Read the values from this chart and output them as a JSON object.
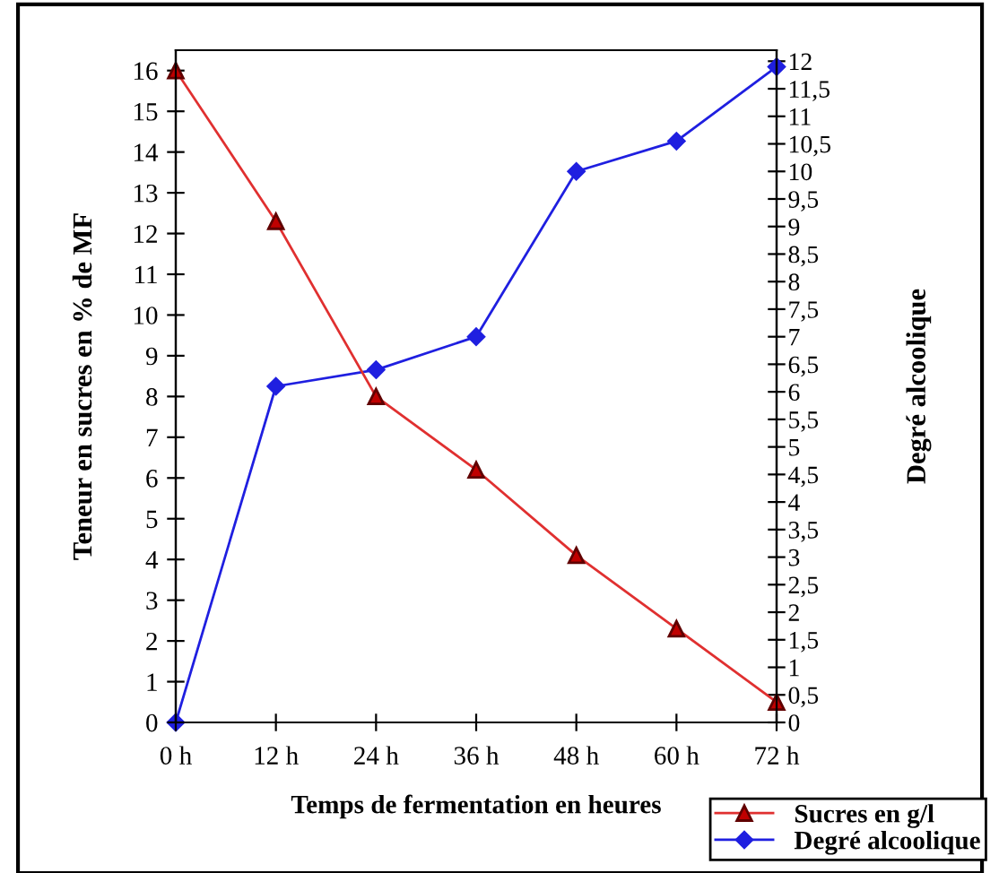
{
  "chart_data": {
    "type": "line",
    "xlabel": "Temps de fermentation en heures",
    "ylabel": "Teneur en sucres en % de MF",
    "y2label": "Degré alcoolique",
    "categories": [
      "0 h",
      "12 h",
      "24 h",
      "36 h",
      "48 h",
      "60 h",
      "72 h"
    ],
    "series": [
      {
        "name": "Sucres en g/l",
        "color": "#e03030",
        "values": [
          16,
          12.3,
          8,
          6.2,
          4.1,
          2.3,
          0.5
        ],
        "marker": "triangle"
      },
      {
        "name": "Degré alcoolique",
        "color": "#1f1fe0",
        "values": [
          0,
          6.1,
          6.4,
          7.0,
          10,
          10.55,
          11.9
        ],
        "marker": "diamond",
        "axis": "y2"
      }
    ],
    "ylim": [
      0,
      16.5
    ],
    "yticks": [
      0,
      1,
      2,
      3,
      4,
      5,
      6,
      7,
      8,
      9,
      10,
      11,
      12,
      13,
      14,
      15,
      16
    ],
    "y2lim": [
      0,
      12.2
    ],
    "y2ticks": [
      0,
      {
        "value": 0.5,
        "label": "0,5"
      },
      1,
      {
        "value": 1.5,
        "label": "1,5"
      },
      2,
      {
        "value": 2.5,
        "label": "2,5"
      },
      3,
      {
        "value": 3.5,
        "label": "3,5"
      },
      4,
      {
        "value": 4.5,
        "label": "4,5"
      },
      5,
      {
        "value": 5.5,
        "label": "5,5"
      },
      6,
      {
        "value": 6.5,
        "label": "6,5"
      },
      7,
      {
        "value": 7.5,
        "label": "7,5"
      },
      8,
      {
        "value": 8.5,
        "label": "8,5"
      },
      9,
      {
        "value": 9.5,
        "label": "9,5"
      },
      10,
      {
        "value": 10.5,
        "label": "10,5"
      },
      11,
      {
        "value": 11.5,
        "label": "11,5"
      },
      12
    ],
    "grid": false,
    "legend": "bottom right",
    "line_style": "solid"
  }
}
